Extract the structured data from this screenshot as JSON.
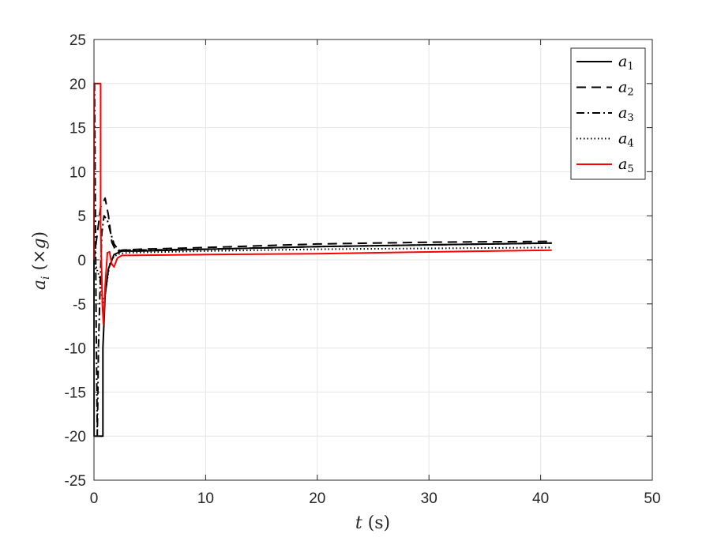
{
  "chart_data": {
    "type": "line",
    "title": "",
    "xlabel": "t (s)",
    "ylabel": "a_i (×g)",
    "xlim": [
      0,
      50
    ],
    "ylim": [
      -25,
      25
    ],
    "xticks": [
      0,
      10,
      20,
      30,
      40,
      50
    ],
    "yticks": [
      -25,
      -20,
      -15,
      -10,
      -5,
      0,
      5,
      10,
      15,
      20,
      25
    ],
    "grid": true,
    "legend_position": "top-right",
    "series": [
      {
        "name": "a1",
        "color": "#000000",
        "style": "solid",
        "x": [
          0,
          0.01,
          0.8,
          0.8,
          1.0,
          1.3,
          1.8,
          2.5,
          4,
          10,
          20,
          30,
          41
        ],
        "y": [
          0,
          -20,
          -20,
          -10,
          -4,
          -1,
          0.6,
          1.0,
          1.0,
          1.2,
          1.5,
          1.7,
          1.9
        ]
      },
      {
        "name": "a2",
        "color": "#000000",
        "style": "dashed",
        "x": [
          0,
          0.3,
          0.6,
          1.0,
          1.3,
          1.6,
          2.0,
          2.5,
          4,
          10,
          20,
          30,
          41
        ],
        "y": [
          0,
          3,
          6,
          7,
          5,
          2,
          0.9,
          1.1,
          1.2,
          1.4,
          1.8,
          2.0,
          2.1
        ]
      },
      {
        "name": "a3",
        "color": "#000000",
        "style": "dashdot",
        "x": [
          0,
          0.05,
          0.2,
          0.3,
          0.4,
          0.55,
          0.7,
          0.9,
          1.2,
          1.5,
          1.8,
          2.2,
          3,
          10,
          20,
          30,
          41
        ],
        "y": [
          20,
          20,
          -8,
          -20,
          -10,
          -3,
          3,
          5,
          4.5,
          3,
          1.8,
          1.1,
          1.1,
          1.2,
          1.5,
          1.7,
          1.9
        ]
      },
      {
        "name": "a4",
        "color": "#000000",
        "style": "dotted",
        "x": [
          0,
          0.5,
          0.8,
          1.1,
          1.4,
          1.8,
          2.3,
          3,
          10,
          20,
          30,
          41
        ],
        "y": [
          0,
          -2,
          -5,
          -3,
          -0.5,
          0.4,
          0.7,
          0.8,
          1.0,
          1.2,
          1.3,
          1.4
        ]
      },
      {
        "name": "a5",
        "color": "#ff0000",
        "style": "solid",
        "x": [
          0,
          0.02,
          0.6,
          0.6,
          0.75,
          0.85,
          1.0,
          1.2,
          1.4,
          1.6,
          1.8,
          2.1,
          2.5,
          3,
          10,
          20,
          30,
          41
        ],
        "y": [
          0,
          20,
          20,
          4,
          -5,
          -7.3,
          -3,
          0.8,
          0.9,
          -0.5,
          -0.8,
          0.2,
          0.5,
          0.5,
          0.6,
          0.7,
          0.9,
          1.1
        ]
      }
    ]
  }
}
